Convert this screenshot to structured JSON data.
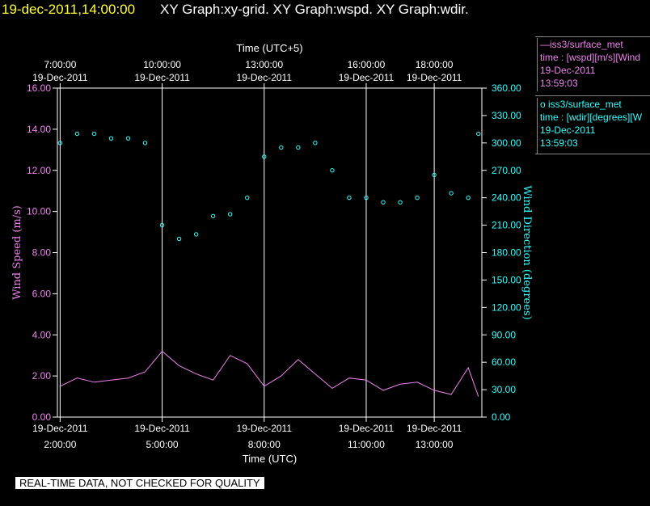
{
  "header": {
    "timestamp": "19-dec-2011,14:00:00",
    "titles": "XY Graph:xy-grid.  XY Graph:wspd.  XY Graph:wdir."
  },
  "colors": {
    "background": "#000000",
    "wspd": "#ee82ee",
    "wdir": "#33ffff",
    "text": "#ffffff",
    "timestamp": "#ffff33"
  },
  "legend": {
    "wspd": {
      "line": "—iss3/surface_met",
      "time": "time : [wspd][m/s][Wind",
      "date": "19-Dec-2011",
      "clock": "13:59:03"
    },
    "wdir": {
      "line": "o  iss3/surface_met",
      "time": "time : [wdir][degrees][W",
      "date": "19-Dec-2011",
      "clock": "13:59:03"
    }
  },
  "footer": {
    "quality_note": "REAL-TIME DATA, NOT CHECKED FOR QUALITY"
  },
  "chart_data": {
    "type": "line",
    "top_axis_title": "Time (UTC+5)",
    "bottom_axis_title": "Time (UTC)",
    "ylabel_left": "Wind Speed (m/s)",
    "ylabel_right": "Wind Direction (degrees)",
    "x_range_hours_utc": [
      1.92,
      14.4
    ],
    "ylim_left": [
      0,
      16
    ],
    "ylim_right": [
      0,
      360
    ],
    "left_ticks": [
      0,
      2,
      4,
      6,
      8,
      10,
      12,
      14,
      16
    ],
    "left_tick_labels": [
      "0.00",
      "2.00",
      "4.00",
      "6.00",
      "8.00",
      "10.00",
      "12.00",
      "14.00",
      "16.00"
    ],
    "right_ticks": [
      0,
      30,
      60,
      90,
      120,
      150,
      180,
      210,
      240,
      270,
      300,
      330,
      360
    ],
    "right_tick_labels": [
      "0.00",
      "30.00",
      "60.00",
      "90.00",
      "120.00",
      "150.00",
      "180.00",
      "210.00",
      "240.00",
      "270.00",
      "300.00",
      "330.00",
      "360.00"
    ],
    "bottom_ticks": [
      {
        "h": 2,
        "date": "19-Dec-2011",
        "time": "2:00:00"
      },
      {
        "h": 5,
        "date": "19-Dec-2011",
        "time": "5:00:00"
      },
      {
        "h": 8,
        "date": "19-Dec-2011",
        "time": "8:00:00"
      },
      {
        "h": 11,
        "date": "19-Dec-2011",
        "time": "11:00:00"
      },
      {
        "h": 13,
        "date": "19-Dec-2011",
        "time": "13:00:00"
      }
    ],
    "top_ticks": [
      {
        "h": 2,
        "time": "7:00:00",
        "date": "19-Dec-2011"
      },
      {
        "h": 5,
        "time": "10:00:00",
        "date": "19-Dec-2011"
      },
      {
        "h": 8,
        "time": "13:00:00",
        "date": "19-Dec-2011"
      },
      {
        "h": 11,
        "time": "16:00:00",
        "date": "19-Dec-2011"
      },
      {
        "h": 13,
        "time": "18:00:00",
        "date": "19-Dec-2011"
      }
    ],
    "series": [
      {
        "name": "wspd",
        "axis": "left",
        "style": "line",
        "x": [
          2.0,
          2.5,
          3.0,
          3.5,
          4.0,
          4.5,
          5.0,
          5.5,
          6.0,
          6.5,
          7.0,
          7.5,
          8.0,
          8.5,
          9.0,
          9.5,
          10.0,
          10.5,
          11.0,
          11.5,
          12.0,
          12.5,
          13.0,
          13.5,
          14.0,
          14.3
        ],
        "values": [
          1.5,
          1.9,
          1.7,
          1.8,
          1.9,
          2.2,
          3.2,
          2.5,
          2.1,
          1.8,
          3.0,
          2.6,
          1.5,
          2.0,
          2.8,
          2.1,
          1.4,
          1.9,
          1.8,
          1.3,
          1.6,
          1.7,
          1.3,
          1.1,
          2.4,
          1.0
        ]
      },
      {
        "name": "wdir",
        "axis": "right",
        "style": "scatter",
        "x": [
          2.0,
          2.5,
          3.0,
          3.5,
          4.0,
          4.5,
          5.0,
          5.5,
          6.0,
          6.5,
          7.0,
          7.5,
          8.0,
          8.5,
          9.0,
          9.5,
          10.0,
          10.5,
          11.0,
          11.5,
          12.0,
          12.5,
          13.0,
          13.5,
          14.0,
          14.3
        ],
        "values": [
          300,
          310,
          310,
          305,
          305,
          300,
          210,
          195,
          200,
          220,
          222,
          240,
          285,
          295,
          295,
          300,
          270,
          240,
          240,
          235,
          235,
          240,
          265,
          245,
          240,
          310
        ]
      }
    ]
  }
}
